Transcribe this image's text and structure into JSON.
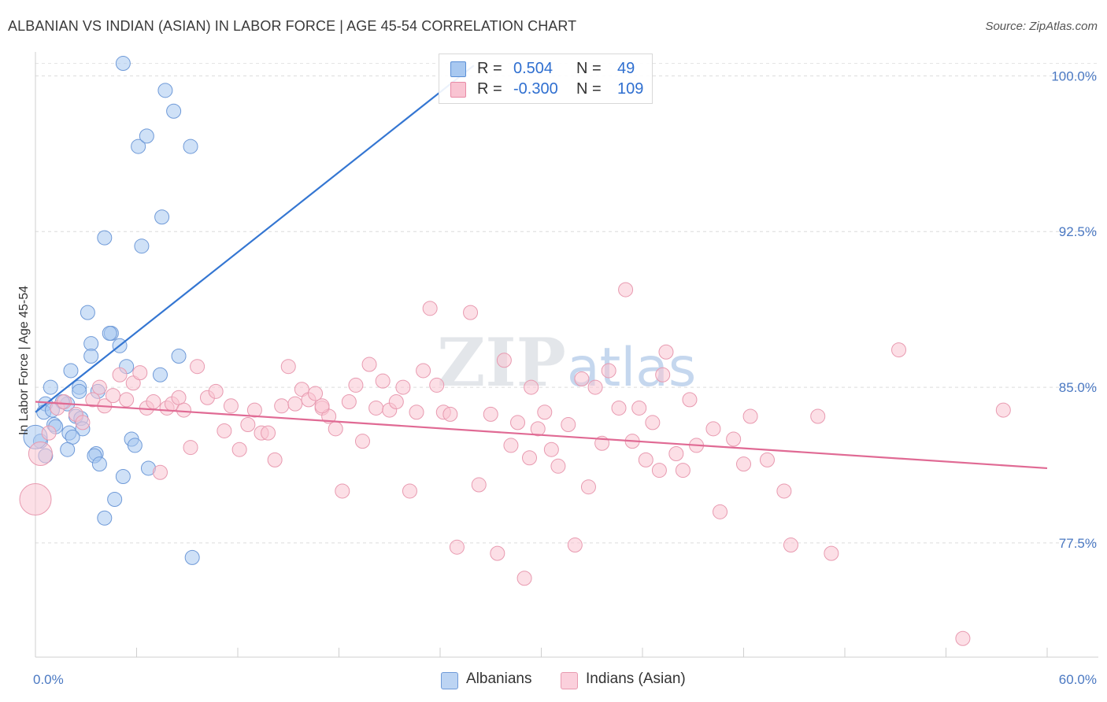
{
  "title": "ALBANIAN VS INDIAN (ASIAN) IN LABOR FORCE | AGE 45-54 CORRELATION CHART",
  "source": "Source: ZipAtlas.com",
  "watermark": {
    "zip": "ZIP",
    "atlas": "atlas"
  },
  "legend": {
    "rows": [
      {
        "r_label": "R =",
        "r_value": "0.504",
        "n_label": "N =",
        "n_value": "49",
        "color": "#a8c8f0",
        "border": "#5a8fd6"
      },
      {
        "r_label": "R =",
        "r_value": "-0.300",
        "n_label": "N =",
        "n_value": "109",
        "color": "#f9c4d2",
        "border": "#e88aa6"
      }
    ]
  },
  "bottom_legend": [
    {
      "label": "Albanians",
      "color": "#bcd4f3",
      "border": "#6f9ad8"
    },
    {
      "label": "Indians (Asian)",
      "color": "#fbd0dc",
      "border": "#e89ab0"
    }
  ],
  "chart_data": {
    "type": "scatter",
    "title": "ALBANIAN VS INDIAN (ASIAN) IN LABOR FORCE | AGE 45-54 CORRELATION CHART",
    "xlabel": "",
    "ylabel": "In Labor Force | Age 45-54",
    "xlim": [
      0,
      60
    ],
    "ylim": [
      72,
      101
    ],
    "x_tick_labels": [
      "0.0%",
      "60.0%"
    ],
    "y_ticks": [
      77.5,
      85.0,
      92.5,
      100.0
    ],
    "y_tick_labels": [
      "77.5%",
      "85.0%",
      "92.5%",
      "100.0%"
    ],
    "grid": true,
    "series": [
      {
        "name": "Albanians",
        "color": "#a8c8f0",
        "stroke": "#6f9ad8",
        "trend": {
          "x": [
            0.0,
            26.0
          ],
          "y": [
            83.8,
            100.5
          ],
          "color": "#3476d2"
        },
        "points": [
          [
            5.2,
            100.6
          ],
          [
            7.7,
            99.3
          ],
          [
            6.1,
            96.6
          ],
          [
            8.2,
            98.3
          ],
          [
            9.2,
            96.6
          ],
          [
            6.6,
            97.1
          ],
          [
            7.5,
            93.2
          ],
          [
            4.1,
            92.2
          ],
          [
            6.3,
            91.8
          ],
          [
            3.1,
            88.6
          ],
          [
            4.5,
            87.6
          ],
          [
            4.4,
            87.6
          ],
          [
            3.3,
            87.1
          ],
          [
            5.0,
            87.0
          ],
          [
            3.3,
            86.5
          ],
          [
            8.5,
            86.5
          ],
          [
            5.4,
            86.0
          ],
          [
            2.1,
            85.8
          ],
          [
            7.4,
            85.6
          ],
          [
            0.9,
            85.0
          ],
          [
            2.6,
            85.0
          ],
          [
            3.7,
            84.8
          ],
          [
            1.9,
            84.2
          ],
          [
            2.6,
            84.8
          ],
          [
            0.6,
            84.2
          ],
          [
            1.6,
            84.3
          ],
          [
            0.5,
            83.8
          ],
          [
            1.0,
            83.9
          ],
          [
            2.4,
            83.6
          ],
          [
            2.7,
            83.5
          ],
          [
            1.1,
            83.2
          ],
          [
            1.2,
            83.1
          ],
          [
            2.8,
            83.0
          ],
          [
            2.0,
            82.8
          ],
          [
            2.2,
            82.6
          ],
          [
            5.7,
            82.5
          ],
          [
            0.3,
            82.4
          ],
          [
            5.9,
            82.2
          ],
          [
            1.9,
            82.0
          ],
          [
            3.6,
            81.8
          ],
          [
            3.5,
            81.7
          ],
          [
            0.6,
            81.7
          ],
          [
            3.8,
            81.3
          ],
          [
            6.7,
            81.1
          ],
          [
            5.2,
            80.7
          ],
          [
            4.7,
            79.6
          ],
          [
            4.1,
            78.7
          ],
          [
            9.3,
            76.8
          ],
          [
            0.0,
            82.6
          ]
        ]
      },
      {
        "name": "Indians (Asian)",
        "color": "#f9c4d2",
        "stroke": "#e89ab0",
        "trend": {
          "x": [
            0.0,
            60.0
          ],
          "y": [
            84.3,
            81.1
          ],
          "color": "#e06a94"
        },
        "points": [
          [
            0.0,
            79.6
          ],
          [
            0.3,
            81.8
          ],
          [
            0.8,
            82.8
          ],
          [
            1.3,
            84.0
          ],
          [
            1.7,
            84.3
          ],
          [
            2.4,
            83.7
          ],
          [
            2.8,
            83.3
          ],
          [
            3.4,
            84.4
          ],
          [
            3.8,
            85.0
          ],
          [
            4.1,
            84.1
          ],
          [
            4.6,
            84.6
          ],
          [
            5.0,
            85.6
          ],
          [
            5.4,
            84.4
          ],
          [
            5.8,
            85.2
          ],
          [
            6.2,
            85.7
          ],
          [
            6.6,
            84.0
          ],
          [
            7.0,
            84.3
          ],
          [
            7.4,
            80.9
          ],
          [
            7.8,
            84.0
          ],
          [
            8.1,
            84.2
          ],
          [
            8.5,
            84.5
          ],
          [
            8.8,
            83.9
          ],
          [
            9.2,
            82.1
          ],
          [
            9.6,
            86.0
          ],
          [
            10.2,
            84.5
          ],
          [
            10.7,
            84.8
          ],
          [
            11.2,
            82.9
          ],
          [
            11.6,
            84.1
          ],
          [
            12.1,
            82.0
          ],
          [
            12.6,
            83.2
          ],
          [
            13.0,
            83.9
          ],
          [
            13.4,
            82.8
          ],
          [
            13.8,
            82.8
          ],
          [
            14.2,
            81.5
          ],
          [
            14.6,
            84.1
          ],
          [
            15.0,
            86.0
          ],
          [
            15.4,
            84.2
          ],
          [
            15.8,
            84.9
          ],
          [
            16.2,
            84.4
          ],
          [
            16.6,
            84.7
          ],
          [
            17.0,
            84.0
          ],
          [
            17.4,
            83.6
          ],
          [
            17.8,
            83.0
          ],
          [
            18.2,
            80.0
          ],
          [
            18.6,
            84.3
          ],
          [
            19.0,
            85.1
          ],
          [
            19.4,
            82.4
          ],
          [
            19.8,
            86.1
          ],
          [
            20.2,
            84.0
          ],
          [
            20.6,
            85.3
          ],
          [
            21.0,
            83.9
          ],
          [
            21.4,
            84.3
          ],
          [
            21.8,
            85.0
          ],
          [
            22.2,
            80.0
          ],
          [
            22.6,
            83.8
          ],
          [
            23.0,
            85.8
          ],
          [
            23.4,
            88.8
          ],
          [
            23.8,
            85.1
          ],
          [
            24.2,
            83.8
          ],
          [
            24.6,
            83.7
          ],
          [
            25.0,
            77.3
          ],
          [
            25.8,
            88.6
          ],
          [
            26.3,
            80.3
          ],
          [
            27.0,
            83.7
          ],
          [
            27.4,
            77.0
          ],
          [
            27.8,
            86.3
          ],
          [
            28.2,
            82.2
          ],
          [
            28.6,
            83.3
          ],
          [
            29.0,
            75.8
          ],
          [
            29.4,
            85.0
          ],
          [
            29.8,
            83.0
          ],
          [
            30.2,
            83.8
          ],
          [
            30.6,
            82.0
          ],
          [
            31.0,
            81.2
          ],
          [
            31.6,
            83.2
          ],
          [
            32.0,
            77.4
          ],
          [
            32.4,
            85.4
          ],
          [
            32.8,
            80.2
          ],
          [
            33.2,
            85.0
          ],
          [
            33.6,
            82.3
          ],
          [
            34.0,
            85.8
          ],
          [
            34.6,
            84.0
          ],
          [
            35.0,
            89.7
          ],
          [
            35.4,
            82.4
          ],
          [
            35.8,
            84.0
          ],
          [
            36.2,
            81.5
          ],
          [
            36.6,
            83.3
          ],
          [
            37.0,
            81.0
          ],
          [
            37.4,
            86.7
          ],
          [
            38.0,
            81.8
          ],
          [
            38.4,
            81.0
          ],
          [
            38.8,
            84.4
          ],
          [
            39.2,
            82.2
          ],
          [
            40.2,
            83.0
          ],
          [
            40.6,
            79.0
          ],
          [
            41.4,
            82.5
          ],
          [
            42.0,
            81.3
          ],
          [
            42.4,
            83.6
          ],
          [
            43.4,
            81.5
          ],
          [
            44.4,
            80.0
          ],
          [
            44.8,
            77.4
          ],
          [
            46.4,
            83.6
          ],
          [
            47.2,
            77.0
          ],
          [
            51.2,
            86.8
          ],
          [
            55.0,
            72.9
          ],
          [
            57.4,
            83.9
          ],
          [
            37.2,
            85.6
          ],
          [
            29.3,
            81.6
          ],
          [
            17.0,
            84.1
          ]
        ]
      }
    ]
  }
}
